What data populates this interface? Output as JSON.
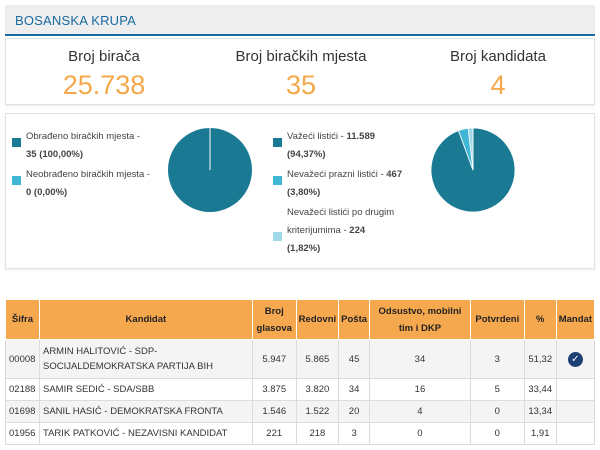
{
  "header": {
    "title": "BOSANSKA KRUPA"
  },
  "stats": [
    {
      "label": "Broj birača",
      "value": "25.738"
    },
    {
      "label": "Broj biračkih mjesta",
      "value": "35"
    },
    {
      "label": "Broj kandidata",
      "value": "4"
    }
  ],
  "colors": {
    "dark_teal": "#1a7a93",
    "light_teal": "#3fb7d4",
    "pale_blue": "#9fd9e9",
    "orange": "#f6a84f",
    "title_blue": "#1a6aa0"
  },
  "pie_left": {
    "items": [
      {
        "label": "Obrađeno biračkih mjesta -",
        "value": "35 (100,00%)",
        "fraction": 1.0,
        "color": "#1a7a93"
      },
      {
        "label": "Neobrađeno biračkih mjesta -",
        "value": "0 (0,00%)",
        "fraction": 0.0,
        "color": "#3fb7d4"
      }
    ]
  },
  "pie_right": {
    "items": [
      {
        "label": "Važeći listići - ",
        "value_strong": "11.589",
        "value_rest": "(94,37%)",
        "fraction": 0.9437,
        "color": "#1a7a93"
      },
      {
        "label": "Nevažeći prazni listići - ",
        "value_strong": "467",
        "value_rest": "(3,80%)",
        "fraction": 0.038,
        "color": "#3fb7d4"
      },
      {
        "label": "Nevažeći listići po drugim",
        "label2": "kriterijumima - ",
        "value_strong": "224",
        "value_rest": "(1,82%)",
        "fraction": 0.0182,
        "color": "#9fd9e9"
      }
    ]
  },
  "table": {
    "headers": [
      "Šifra",
      "Kandidat",
      "Broj glasova",
      "Redovni",
      "Pošta",
      "Odsustvo, mobilni tim i DKP",
      "Potvrdeni",
      "%",
      "Mandat"
    ],
    "rows": [
      {
        "sifra": "00008",
        "kandidat_1": "ARMIN HALITOVIĆ - SDP-",
        "kandidat_2": "SOCIJALDEMOKRATSKA PARTIJA BIH",
        "glasova": "5.947",
        "redovni": "5.865",
        "posta": "45",
        "odsustvo": "34",
        "potvrdeni": "3",
        "procenat": "51,32",
        "mandat": true
      },
      {
        "sifra": "02188",
        "kandidat_1": "SAMIR SEDIĆ - SDA/SBB",
        "glasova": "3.875",
        "redovni": "3.820",
        "posta": "34",
        "odsustvo": "16",
        "potvrdeni": "5",
        "procenat": "33,44",
        "mandat": false
      },
      {
        "sifra": "01698",
        "kandidat_1": "SANIL HASIĆ - DEMOKRATSKA FRONTA",
        "glasova": "1.546",
        "redovni": "1.522",
        "posta": "20",
        "odsustvo": "4",
        "potvrdeni": "0",
        "procenat": "13,34",
        "mandat": false
      },
      {
        "sifra": "01956",
        "kandidat_1": "TARIK PATKOVIĆ - NEZAVISNI KANDIDAT",
        "glasova": "221",
        "redovni": "218",
        "posta": "3",
        "odsustvo": "0",
        "potvrdeni": "0",
        "procenat": "1,91",
        "mandat": false
      }
    ]
  }
}
